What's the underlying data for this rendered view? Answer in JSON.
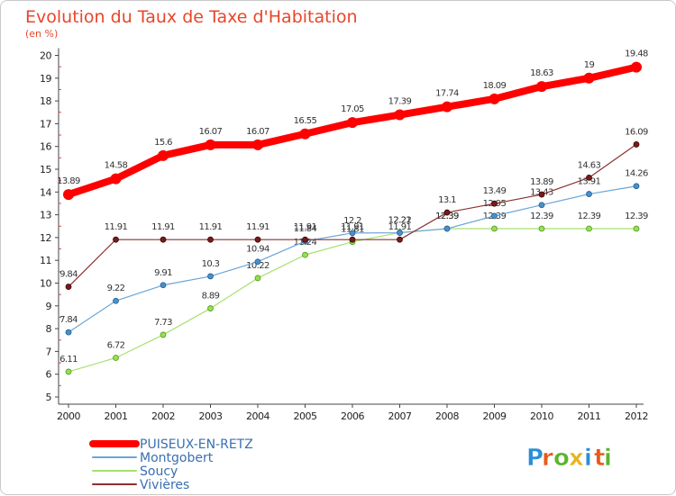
{
  "chart_data": {
    "type": "line",
    "title": "Evolution du Taux de Taxe d'Habitation",
    "subtitle": "(en %)",
    "x": [
      "2000",
      "2001",
      "2002",
      "2003",
      "2004",
      "2005",
      "2006",
      "2007",
      "2008",
      "2009",
      "2010",
      "2011",
      "2012"
    ],
    "ylim": [
      5,
      20
    ],
    "yticks": [
      5,
      6,
      7,
      8,
      9,
      10,
      11,
      12,
      13,
      14,
      15,
      16,
      17,
      18,
      19,
      20
    ],
    "grid": false,
    "legend_position": "bottom-left",
    "series": [
      {
        "name": "PUISEUX-EN-RETZ",
        "color": "#ff0000",
        "values": [
          13.89,
          14.58,
          15.6,
          16.07,
          16.07,
          16.55,
          17.05,
          17.39,
          17.74,
          18.09,
          18.63,
          19,
          19.48
        ],
        "labels": [
          "13.89",
          "14.58",
          "15.6",
          "16.07",
          "16.07",
          "16.55",
          "17.05",
          "17.39",
          "17.74",
          "18.09",
          "18.63",
          "19",
          "19.48"
        ]
      },
      {
        "name": "Montgobert",
        "color": "#4a90c8",
        "values": [
          7.84,
          9.22,
          9.91,
          10.3,
          10.94,
          11.84,
          12.2,
          12.21,
          12.39,
          12.95,
          13.43,
          13.91,
          14.26
        ],
        "labels": [
          "7.84",
          "9.22",
          "9.91",
          "10.3",
          "10.94",
          "11.84",
          "12.2",
          "12.21",
          "12.39",
          "12.95",
          "13.43",
          "13.91",
          "14.26"
        ]
      },
      {
        "name": "Soucy",
        "color": "#99dd55",
        "values": [
          6.11,
          6.72,
          7.73,
          8.89,
          10.22,
          11.24,
          11.81,
          12.22,
          12.39,
          12.39,
          12.39,
          12.39,
          12.39
        ],
        "labels": [
          "6.11",
          "6.72",
          "7.73",
          "8.89",
          "10.22",
          "11.24",
          "11.81",
          "12.22",
          "12.39",
          "12.39",
          "12.39",
          "12.39",
          "12.39"
        ]
      },
      {
        "name": "Vivières",
        "color": "#7a1a1a",
        "values": [
          9.84,
          11.91,
          11.91,
          11.91,
          11.91,
          11.91,
          11.91,
          11.91,
          13.1,
          13.49,
          13.89,
          14.63,
          16.09
        ],
        "labels": [
          "9.84",
          "11.91",
          "11.91",
          "11.91",
          "11.91",
          "11.91",
          "11.91",
          "11.91",
          "13.1",
          "13.49",
          "13.89",
          "14.63",
          "16.09"
        ]
      }
    ]
  },
  "logo": {
    "letters": [
      "P",
      "r",
      "o",
      "x",
      "i",
      "t",
      "i"
    ],
    "colors": [
      "#2a8fd6",
      "#e85a1a",
      "#5ab52a",
      "#e8b21a",
      "#2a8fd6",
      "#e85a1a",
      "#5ab52a"
    ]
  }
}
